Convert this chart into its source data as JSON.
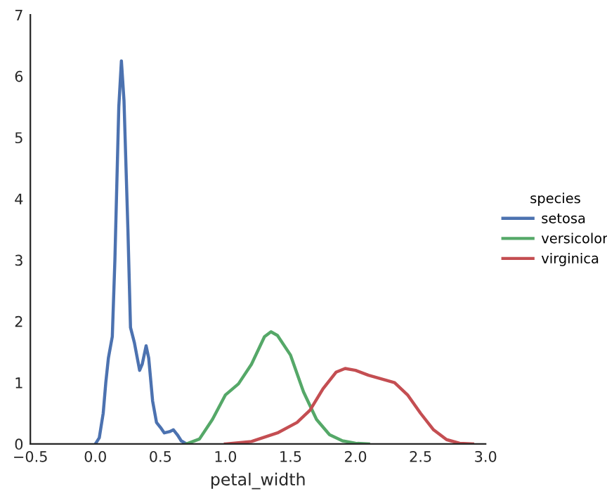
{
  "chart_data": {
    "type": "line",
    "xlabel": "petal_width",
    "legend_title": "species",
    "legend": "right",
    "grid": false,
    "marker": "none",
    "line_style": "solid",
    "xlim": [
      -0.5,
      3.0
    ],
    "xticks": [
      {
        "value": -0.5,
        "label": "−0.5"
      },
      {
        "value": 0.0,
        "label": "0.0"
      },
      {
        "value": 0.5,
        "label": "0.5"
      },
      {
        "value": 1.0,
        "label": "1.0"
      },
      {
        "value": 1.5,
        "label": "1.5"
      },
      {
        "value": 2.0,
        "label": "2.0"
      },
      {
        "value": 2.5,
        "label": "2.5"
      },
      {
        "value": 3.0,
        "label": "3.0"
      }
    ],
    "ylim": [
      0,
      7
    ],
    "yticks": [
      0,
      1,
      2,
      3,
      4,
      5,
      6,
      7
    ],
    "series": [
      {
        "name": "setosa",
        "color": "#4c72b0",
        "x": [
          0.0,
          0.03,
          0.06,
          0.08,
          0.1,
          0.13,
          0.15,
          0.18,
          0.2,
          0.22,
          0.25,
          0.27,
          0.3,
          0.34,
          0.36,
          0.39,
          0.41,
          0.44,
          0.47,
          0.5,
          0.53,
          0.57,
          0.6,
          0.63,
          0.66,
          0.7
        ],
        "values": [
          0,
          0.1,
          0.5,
          1.0,
          1.4,
          1.75,
          3.0,
          5.5,
          6.25,
          5.6,
          3.5,
          1.9,
          1.65,
          1.2,
          1.3,
          1.6,
          1.4,
          0.7,
          0.35,
          0.27,
          0.18,
          0.2,
          0.23,
          0.15,
          0.05,
          0
        ]
      },
      {
        "name": "versicolor",
        "color": "#55a868",
        "x": [
          0.7,
          0.8,
          0.9,
          1.0,
          1.1,
          1.2,
          1.3,
          1.35,
          1.4,
          1.5,
          1.6,
          1.7,
          1.8,
          1.9,
          2.0,
          2.1
        ],
        "values": [
          0,
          0.08,
          0.4,
          0.8,
          0.98,
          1.3,
          1.75,
          1.83,
          1.77,
          1.45,
          0.85,
          0.4,
          0.15,
          0.05,
          0.01,
          0
        ]
      },
      {
        "name": "virginica",
        "color": "#c44e52",
        "x": [
          1.0,
          1.2,
          1.4,
          1.55,
          1.65,
          1.75,
          1.85,
          1.92,
          2.0,
          2.1,
          2.3,
          2.4,
          2.5,
          2.6,
          2.7,
          2.8,
          2.9
        ],
        "values": [
          0,
          0.04,
          0.18,
          0.35,
          0.55,
          0.9,
          1.17,
          1.23,
          1.2,
          1.12,
          1.0,
          0.8,
          0.5,
          0.23,
          0.07,
          0.01,
          0
        ]
      }
    ]
  }
}
